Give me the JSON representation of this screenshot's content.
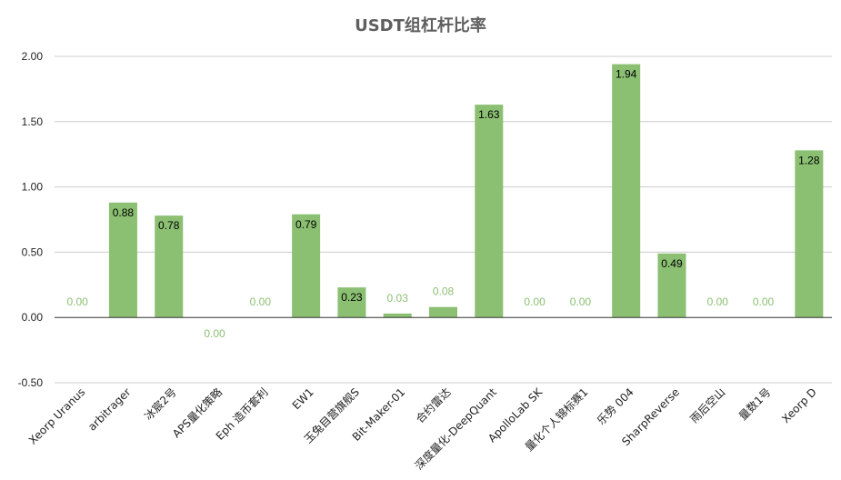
{
  "chart_data": {
    "type": "bar",
    "title": "USDT组杠杆比率",
    "categories": [
      "Xeorp Uranus",
      "arbitrager",
      "冰宸2号",
      "APS量化策略",
      "Eph 造币套利",
      "EW1",
      "玉兔目营旗舰S",
      "Bit-Maker-01",
      "合约雷达",
      "深度量化-DeepQuant",
      "ApolloLab SK",
      "量化个人锦标赛1",
      "乐势 004",
      "SharpReverse",
      "雨后空山",
      "量数1号",
      "Xeorp D"
    ],
    "values": [
      0.0,
      0.88,
      0.78,
      0.0,
      0.0,
      0.79,
      0.23,
      0.03,
      0.08,
      1.63,
      0.0,
      0.0,
      1.94,
      0.49,
      0.0,
      0.0,
      1.28
    ],
    "data_labels": [
      "0.00",
      "0.88",
      "0.78",
      "0.00",
      "0.00",
      "0.79",
      "0.23",
      "0.03",
      "0.08",
      "1.63",
      "0.00",
      "0.00",
      "1.94",
      "0.49",
      "0.00",
      "0.00",
      "1.28"
    ],
    "label_below_axis": [
      false,
      false,
      false,
      true,
      false,
      false,
      false,
      false,
      false,
      false,
      false,
      false,
      false,
      false,
      false,
      false,
      false
    ],
    "y_ticks": [
      "-0.50",
      "0.00",
      "0.50",
      "1.00",
      "1.50",
      "2.00"
    ],
    "ylim": [
      -0.5,
      2.0
    ],
    "xlabel": "",
    "ylabel": "",
    "grid": true,
    "legend": "none",
    "bar_color": "#8bbf72",
    "grid_color": "#cccccc",
    "axis_color": "#333333"
  }
}
